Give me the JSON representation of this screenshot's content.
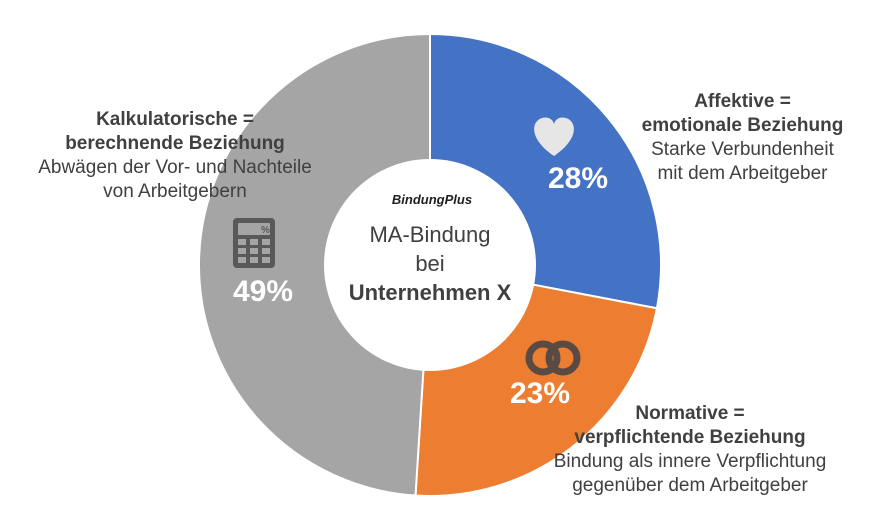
{
  "chart_data": {
    "type": "pie",
    "variant": "donut",
    "center": {
      "brand": "BindungPlus",
      "title": "MA-Bindung",
      "line2": "bei",
      "company": "Unternehmen X"
    },
    "slices": [
      {
        "key": "affektive",
        "value": 28,
        "value_label": "28%",
        "color": "#4472c4",
        "icon": "heart-icon",
        "title_line1": "Affektive =",
        "title_line2": "emotionale Beziehung",
        "desc_line1": "Starke Verbundenheit",
        "desc_line2": "mit dem Arbeitgeber"
      },
      {
        "key": "normative",
        "value": 23,
        "value_label": "23%",
        "color": "#ed7d31",
        "icon": "linked-rings-icon",
        "title_line1": "Normative =",
        "title_line2": "verpflichtende Beziehung",
        "desc_line1": "Bindung als innere Verpflichtung",
        "desc_line2": "gegenüber dem Arbeitgeber"
      },
      {
        "key": "kalkulatorische",
        "value": 49,
        "value_label": "49%",
        "color": "#a5a5a5",
        "icon": "calculator-icon",
        "title_line1": "Kalkulatorische =",
        "title_line2": "berechnende Beziehung",
        "desc_line1": "Abwägen der Vor- und Nachteile",
        "desc_line2": "von Arbeitgebern"
      }
    ]
  }
}
